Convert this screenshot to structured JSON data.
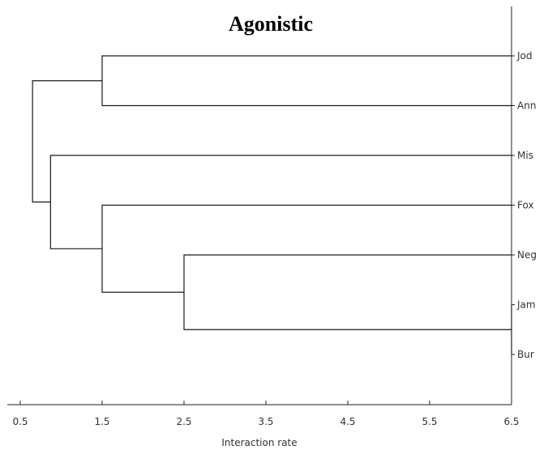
{
  "chart_data": {
    "type": "dendrogram",
    "title": "Agonistic",
    "xlabel": "Interaction rate",
    "xlim": [
      0.5,
      6.5
    ],
    "xticks": [
      0.5,
      1.5,
      2.5,
      3.5,
      4.5,
      5.5,
      6.5
    ],
    "leaves": [
      "Jod",
      "Ann",
      "Mis",
      "Fox",
      "Neg",
      "Jam",
      "Bur"
    ],
    "merges": [
      {
        "id": "c1",
        "left": "Jam",
        "right": "Bur",
        "height": 6.5
      },
      {
        "id": "c2",
        "left": "Neg",
        "right": "c1",
        "height": 2.5
      },
      {
        "id": "c3",
        "left": "Fox",
        "right": "c2",
        "height": 1.5
      },
      {
        "id": "c4",
        "left": "Jod",
        "right": "Ann",
        "height": 1.5
      },
      {
        "id": "c5",
        "left": "Mis",
        "right": "c3",
        "height": 0.87
      },
      {
        "id": "c6",
        "left": "c4",
        "right": "c5",
        "height": 0.65
      }
    ],
    "grid": false
  }
}
